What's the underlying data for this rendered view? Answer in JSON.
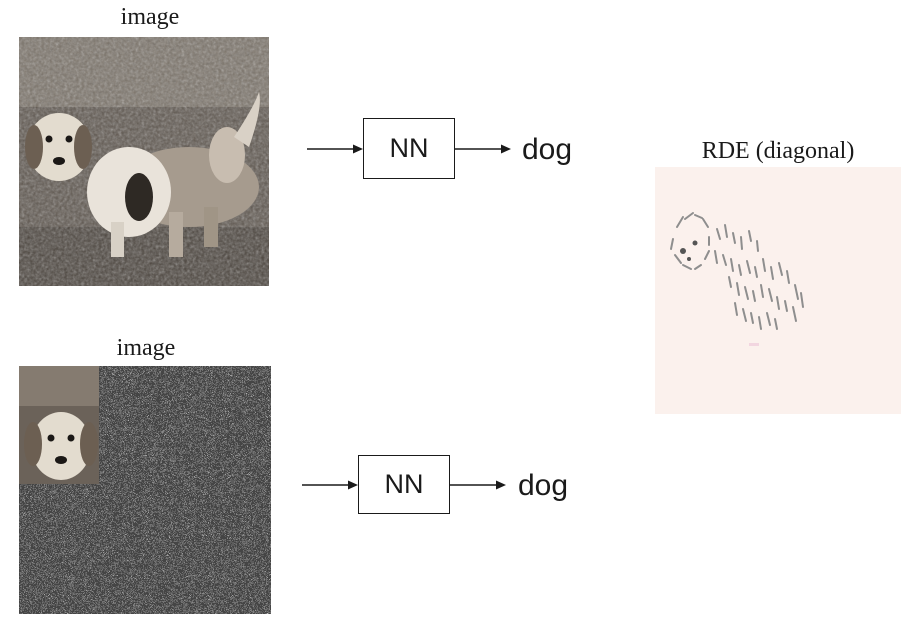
{
  "top_panel": {
    "image_caption": "image",
    "model_label": "NN",
    "prediction": "dog"
  },
  "bottom_panel": {
    "image_caption": "image",
    "model_label": "NN",
    "prediction": "dog"
  },
  "explanation": {
    "caption": "RDE (diagonal)"
  },
  "colors": {
    "ink": "#1a1a1a",
    "photo_mid": "#6e655c",
    "heatmap_background": "#fbf1ed"
  }
}
